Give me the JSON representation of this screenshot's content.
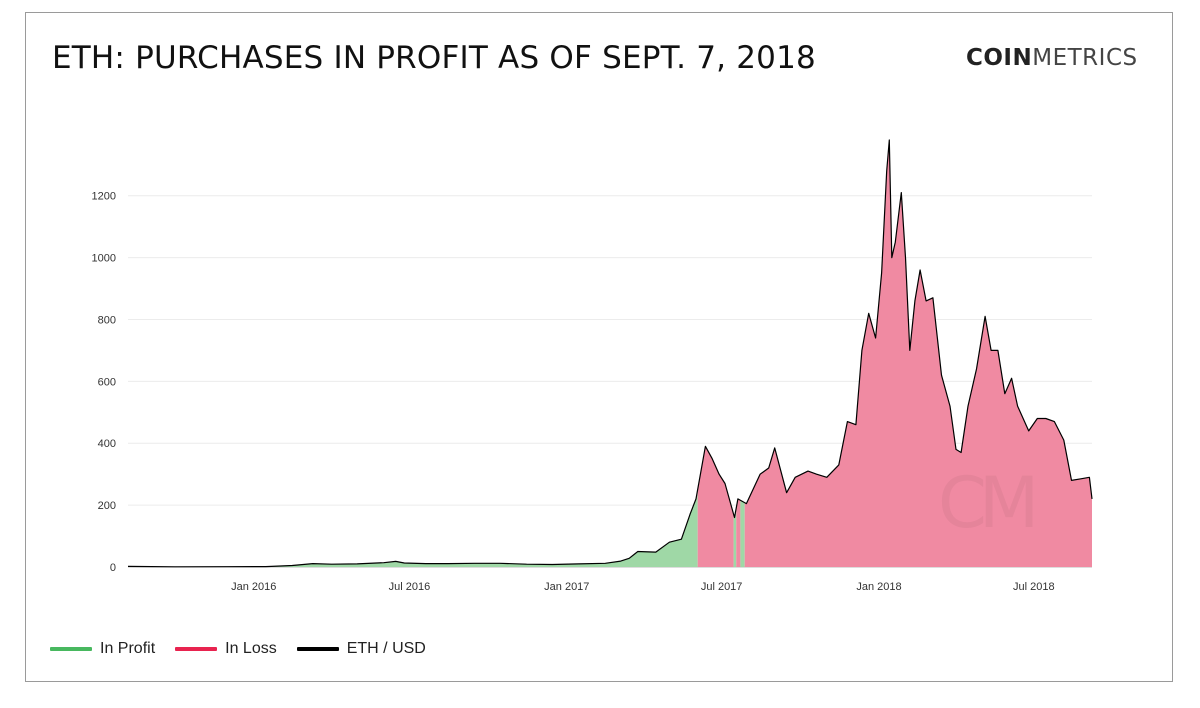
{
  "header": {
    "title": "ETH: PURCHASES IN PROFIT AS OF SEPT. 7, 2018",
    "brand_bold": "COIN",
    "brand_light": "METRICS"
  },
  "watermark": "CM",
  "legend": [
    {
      "label": "In Profit",
      "color": "#48b85f"
    },
    {
      "label": "In Loss",
      "color": "#e8234f"
    },
    {
      "label": "ETH / USD",
      "color": "#000000"
    }
  ],
  "chart_data": {
    "type": "area",
    "title": "ETH: PURCHASES IN PROFIT AS OF SEPT. 7, 2018",
    "xlabel": "",
    "ylabel": "",
    "ylim": [
      0,
      1380
    ],
    "xlim": [
      "2015-08-07",
      "2018-09-07"
    ],
    "y_ticks": [
      0,
      200,
      400,
      600,
      800,
      1000,
      1200
    ],
    "x_ticks": [
      {
        "date": "2016-01-01",
        "label": "Jan 2016"
      },
      {
        "date": "2016-07-01",
        "label": "Jul 2016"
      },
      {
        "date": "2017-01-01",
        "label": "Jan 2017"
      },
      {
        "date": "2017-07-01",
        "label": "Jul 2017"
      },
      {
        "date": "2018-01-01",
        "label": "Jan 2018"
      },
      {
        "date": "2018-07-01",
        "label": "Jul 2018"
      }
    ],
    "grid": true,
    "legend_position": "bottom-left",
    "series_colors": {
      "profit_fill": "#9fd8a6",
      "loss_fill": "#f08aa2",
      "price_line": "#000000"
    },
    "series": [
      {
        "name": "ETH / USD",
        "points": [
          [
            "2015-08-07",
            2
          ],
          [
            "2015-10-01",
            0.6
          ],
          [
            "2015-12-01",
            0.9
          ],
          [
            "2016-01-15",
            1.2
          ],
          [
            "2016-02-15",
            5
          ],
          [
            "2016-03-10",
            11
          ],
          [
            "2016-04-01",
            9
          ],
          [
            "2016-05-01",
            10
          ],
          [
            "2016-06-01",
            14
          ],
          [
            "2016-06-15",
            18
          ],
          [
            "2016-06-25",
            13
          ],
          [
            "2016-07-20",
            11
          ],
          [
            "2016-08-15",
            11
          ],
          [
            "2016-09-15",
            12
          ],
          [
            "2016-10-15",
            12
          ],
          [
            "2016-11-15",
            9
          ],
          [
            "2016-12-15",
            8
          ],
          [
            "2017-01-15",
            10
          ],
          [
            "2017-02-15",
            12
          ],
          [
            "2017-03-05",
            19
          ],
          [
            "2017-03-15",
            28
          ],
          [
            "2017-03-25",
            50
          ],
          [
            "2017-04-15",
            48
          ],
          [
            "2017-05-01",
            80
          ],
          [
            "2017-05-15",
            90
          ],
          [
            "2017-05-25",
            170
          ],
          [
            "2017-06-01",
            220
          ],
          [
            "2017-06-12",
            390
          ],
          [
            "2017-06-20",
            350
          ],
          [
            "2017-06-28",
            300
          ],
          [
            "2017-07-05",
            270
          ],
          [
            "2017-07-16",
            160
          ],
          [
            "2017-07-20",
            220
          ],
          [
            "2017-07-30",
            205
          ],
          [
            "2017-08-15",
            300
          ],
          [
            "2017-08-25",
            320
          ],
          [
            "2017-09-01",
            385
          ],
          [
            "2017-09-15",
            240
          ],
          [
            "2017-09-25",
            290
          ],
          [
            "2017-10-10",
            310
          ],
          [
            "2017-10-20",
            300
          ],
          [
            "2017-11-01",
            290
          ],
          [
            "2017-11-15",
            330
          ],
          [
            "2017-11-25",
            470
          ],
          [
            "2017-12-05",
            460
          ],
          [
            "2017-12-12",
            700
          ],
          [
            "2017-12-20",
            820
          ],
          [
            "2017-12-28",
            740
          ],
          [
            "2018-01-04",
            950
          ],
          [
            "2018-01-10",
            1280
          ],
          [
            "2018-01-13",
            1380
          ],
          [
            "2018-01-16",
            1000
          ],
          [
            "2018-01-20",
            1050
          ],
          [
            "2018-01-27",
            1210
          ],
          [
            "2018-02-01",
            1000
          ],
          [
            "2018-02-06",
            700
          ],
          [
            "2018-02-12",
            860
          ],
          [
            "2018-02-18",
            960
          ],
          [
            "2018-02-25",
            860
          ],
          [
            "2018-03-05",
            870
          ],
          [
            "2018-03-15",
            620
          ],
          [
            "2018-03-25",
            520
          ],
          [
            "2018-04-01",
            380
          ],
          [
            "2018-04-07",
            370
          ],
          [
            "2018-04-15",
            520
          ],
          [
            "2018-04-25",
            640
          ],
          [
            "2018-05-05",
            810
          ],
          [
            "2018-05-12",
            700
          ],
          [
            "2018-05-20",
            700
          ],
          [
            "2018-05-28",
            560
          ],
          [
            "2018-06-05",
            610
          ],
          [
            "2018-06-12",
            520
          ],
          [
            "2018-06-25",
            440
          ],
          [
            "2018-07-05",
            480
          ],
          [
            "2018-07-15",
            480
          ],
          [
            "2018-07-25",
            470
          ],
          [
            "2018-08-05",
            410
          ],
          [
            "2018-08-14",
            280
          ],
          [
            "2018-08-25",
            285
          ],
          [
            "2018-09-04",
            290
          ],
          [
            "2018-09-07",
            220
          ]
        ]
      }
    ],
    "profit_loss_segments": [
      {
        "status": "In Profit",
        "start": "2015-08-07",
        "end": "2017-06-03"
      },
      {
        "status": "In Loss",
        "start": "2017-06-03",
        "end": "2017-07-15"
      },
      {
        "status": "In Profit",
        "start": "2017-07-15",
        "end": "2017-07-18"
      },
      {
        "status": "In Loss",
        "start": "2017-07-18",
        "end": "2017-07-23"
      },
      {
        "status": "In Profit",
        "start": "2017-07-23",
        "end": "2017-07-28"
      },
      {
        "status": "In Loss",
        "start": "2017-07-28",
        "end": "2018-09-07"
      }
    ]
  }
}
